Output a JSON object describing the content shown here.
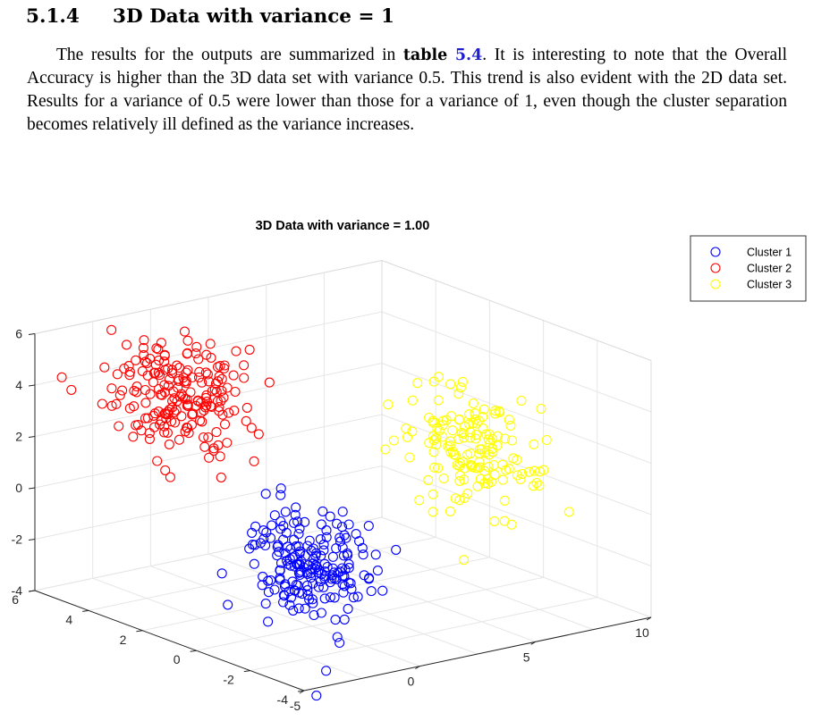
{
  "section": {
    "number": "5.1.4",
    "title": "3D Data with variance = 1"
  },
  "paragraph": {
    "part1": "The results for the outputs are summarized in ",
    "table_word": "table",
    "table_ref": "5.4",
    "part2": ". It is interesting to note that the Overall Accuracy is higher than the 3D data set with variance 0.5. This trend is also evident with the 2D data set. Results for a variance of 0.5 were lower than those for a variance of 1, even though the cluster separation becomes relatively ill defined as the variance increases."
  },
  "chart_data": {
    "type": "scatter",
    "title": "3D Data with variance = 1.00",
    "projection": "3d",
    "axes": {
      "x": {
        "ticks": [
          "-5",
          "0",
          "5",
          "10"
        ],
        "range": [
          -5,
          10
        ]
      },
      "y": {
        "ticks": [
          "-4",
          "-2",
          "0",
          "2",
          "4",
          "6"
        ],
        "range": [
          -4,
          6
        ]
      },
      "z": {
        "ticks": [
          "-4",
          "-2",
          "0",
          "2",
          "4",
          "6"
        ],
        "range": [
          -4,
          6
        ]
      }
    },
    "grid": true,
    "legend_position": "top-right",
    "marker": "open-circle",
    "series": [
      {
        "name": "Cluster 1",
        "color": "#0000ff",
        "center": [
          0,
          0,
          -1.6
        ],
        "variance": 1.0,
        "n_points": 200
      },
      {
        "name": "Cluster 2",
        "color": "#ff0000",
        "center": [
          0,
          5,
          3
        ],
        "variance": 1.0,
        "n_points": 200
      },
      {
        "name": "Cluster 3",
        "color": "#ffff00",
        "center": [
          7,
          0,
          1.5
        ],
        "variance": 1.0,
        "n_points": 150
      }
    ]
  }
}
